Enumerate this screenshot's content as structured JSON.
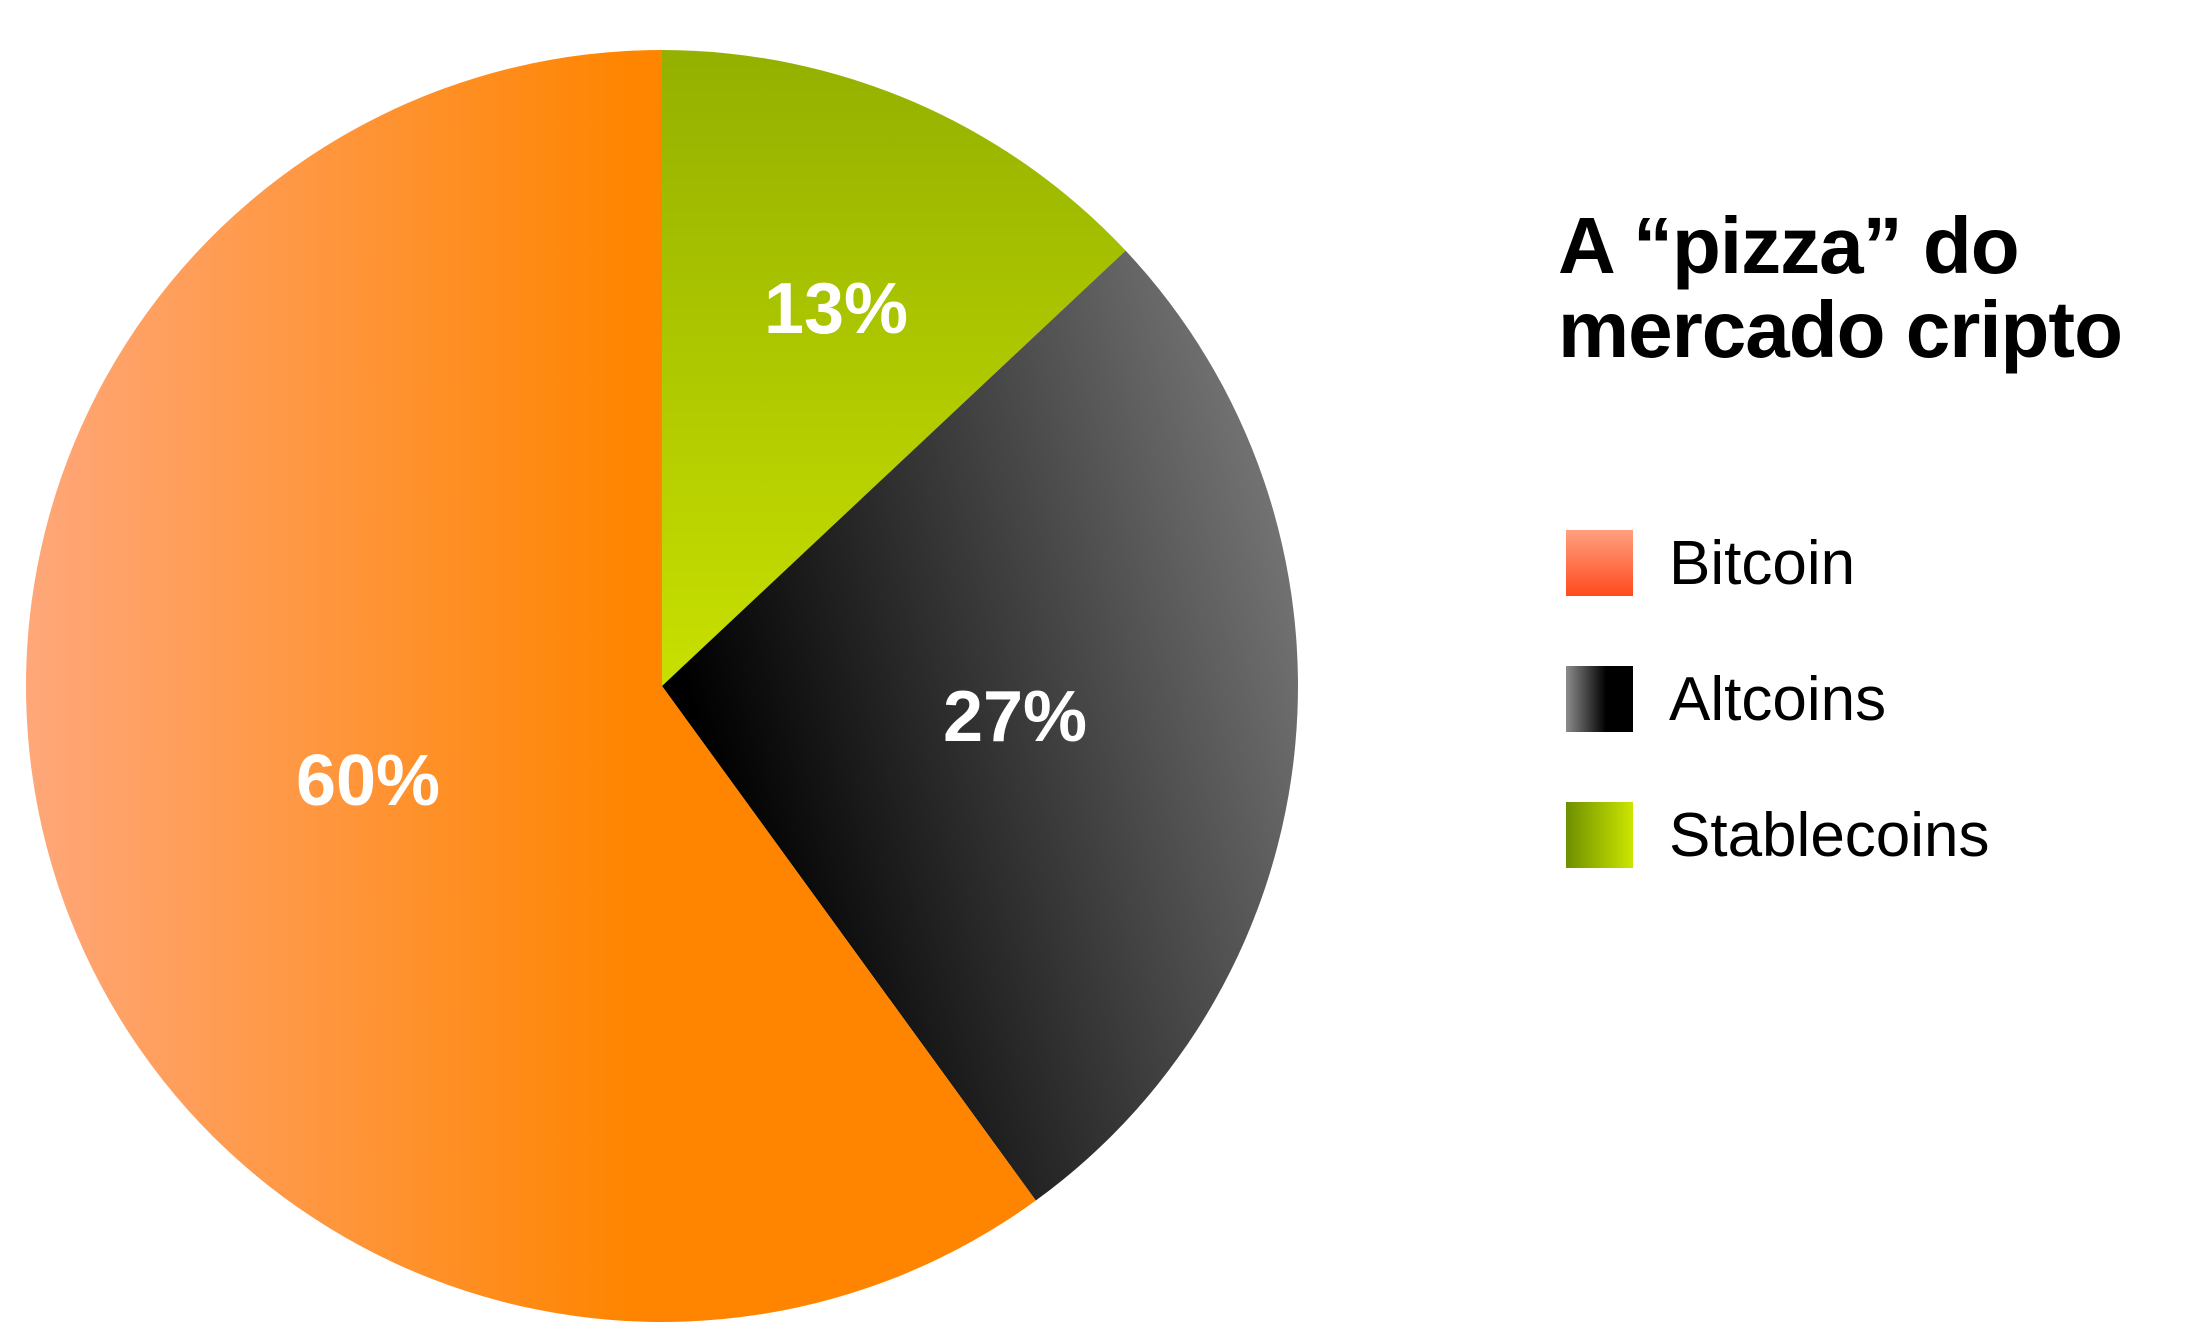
{
  "chart_data": {
    "type": "pie",
    "title": "A “pizza” do mercado cripto",
    "title_lines": [
      "A “pizza” do",
      "mercado cripto"
    ],
    "legend_position": "right",
    "slices": [
      {
        "name": "Stablecoins",
        "value": 13,
        "label": "13%",
        "color_light": "#C8E000",
        "color_dark": "#94B000"
      },
      {
        "name": "Altcoins",
        "value": 27,
        "label": "27%",
        "color_light": "#7A7A7A",
        "color_dark": "#000000"
      },
      {
        "name": "Bitcoin",
        "value": 60,
        "label": "60%",
        "color_light": "#FFA77A",
        "color_dark": "#FF8500"
      }
    ],
    "legend": [
      {
        "name": "Bitcoin",
        "swatch_top": "#FFA080",
        "swatch_bottom": "#FF4A1E"
      },
      {
        "name": "Altcoins",
        "swatch_top": "#8C8C8C",
        "swatch_bottom": "#000000"
      },
      {
        "name": "Stablecoins",
        "swatch_top": "#6E8F00",
        "swatch_bottom": "#CCE600"
      }
    ]
  }
}
